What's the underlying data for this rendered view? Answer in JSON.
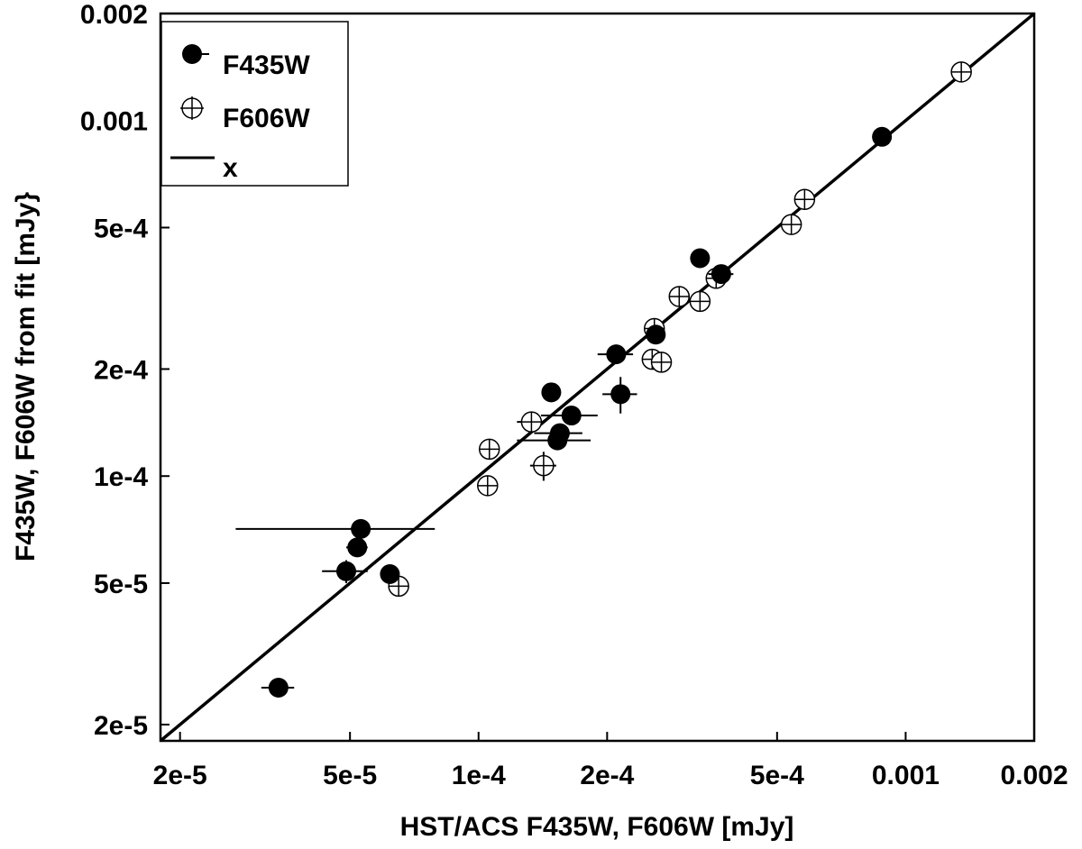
{
  "chart_data": {
    "type": "scatter",
    "xlabel": "HST/ACS F435W, F606W [mJy]",
    "ylabel": "F435W, F606W  from fit [mJy}",
    "x_scale": "log",
    "y_scale": "log",
    "xlim": [
      1.8e-05,
      0.002
    ],
    "ylim": [
      1.8e-05,
      0.002
    ],
    "x_ticks": [
      {
        "value": 2e-05,
        "label": "2e-5"
      },
      {
        "value": 5e-05,
        "label": "5e-5"
      },
      {
        "value": 0.0001,
        "label": "1e-4"
      },
      {
        "value": 0.0002,
        "label": "2e-4"
      },
      {
        "value": 0.0005,
        "label": "5e-4"
      },
      {
        "value": 0.001,
        "label": "0.001"
      },
      {
        "value": 0.002,
        "label": "0.002"
      }
    ],
    "y_ticks": [
      {
        "value": 2e-05,
        "label": "2e-5"
      },
      {
        "value": 5e-05,
        "label": "5e-5"
      },
      {
        "value": 0.0001,
        "label": "1e-4"
      },
      {
        "value": 0.0002,
        "label": "2e-4"
      },
      {
        "value": 0.0005,
        "label": "5e-4"
      },
      {
        "value": 0.001,
        "label": "0.001"
      },
      {
        "value": 0.002,
        "label": "0.002"
      }
    ],
    "grid": false,
    "legend_position": "top-left",
    "legend": [
      {
        "label": "F435W",
        "marker": "filled-circle"
      },
      {
        "label": "F606W",
        "marker": "open-circle-cross"
      },
      {
        "label": "x",
        "marker": "line"
      }
    ],
    "reference_line": {
      "name": "x",
      "x": [
        1.8e-05,
        0.002
      ],
      "y": [
        1.8e-05,
        0.002
      ]
    },
    "series": [
      {
        "name": "F435W",
        "marker": "filled-circle",
        "points": [
          {
            "x": 0.00088,
            "y": 0.0009,
            "xerr": 1e-05,
            "yerr": 5e-06
          },
          {
            "x": 0.00033,
            "y": 0.00041,
            "xerr": 1e-05,
            "yerr": 8e-06
          },
          {
            "x": 0.00037,
            "y": 0.00037,
            "xerr": 2.5e-05,
            "yerr": 1e-05
          },
          {
            "x": 0.00026,
            "y": 0.00025,
            "xerr": 1e-05,
            "yerr": 1e-05
          },
          {
            "x": 0.00021,
            "y": 0.00022,
            "xerr": 2e-05,
            "yerr": 8e-06
          },
          {
            "x": 0.000215,
            "y": 0.00017,
            "xerr": 2e-05,
            "yerr": 2e-05
          },
          {
            "x": 0.000148,
            "y": 0.000172,
            "xerr": 5e-06,
            "yerr": 5e-06
          },
          {
            "x": 0.000165,
            "y": 0.000148,
            "xerr": 2.5e-05,
            "yerr": 5e-06
          },
          {
            "x": 0.000155,
            "y": 0.000132,
            "xerr": 2e-05,
            "yerr": 5e-06
          },
          {
            "x": 0.000153,
            "y": 0.000126,
            "xerr": 3e-05,
            "yerr": 5e-06
          },
          {
            "x": 5.3e-05,
            "y": 7.1e-05,
            "xerr": 2.6e-05,
            "yerr": 3e-06
          },
          {
            "x": 5.2e-05,
            "y": 6.3e-05,
            "xerr": 3e-06,
            "yerr": 3e-06
          },
          {
            "x": 4.9e-05,
            "y": 5.4e-05,
            "xerr": 6e-06,
            "yerr": 4e-06
          },
          {
            "x": 6.2e-05,
            "y": 5.3e-05,
            "xerr": 3e-06,
            "yerr": 2e-06
          },
          {
            "x": 3.4e-05,
            "y": 2.54e-05,
            "xerr": 3e-06,
            "yerr": 5e-07
          }
        ]
      },
      {
        "name": "F606W",
        "marker": "open-circle-cross",
        "points": [
          {
            "x": 0.00135,
            "y": 0.00137,
            "xerr": 1e-05,
            "yerr": 1e-05
          },
          {
            "x": 0.00058,
            "y": 0.0006,
            "xerr": 1e-05,
            "yerr": 1e-05
          },
          {
            "x": 0.00054,
            "y": 0.00051,
            "xerr": 1e-05,
            "yerr": 1e-05
          },
          {
            "x": 0.00036,
            "y": 0.00036,
            "xerr": 1e-05,
            "yerr": 1e-05
          },
          {
            "x": 0.00033,
            "y": 0.00031,
            "xerr": 1e-05,
            "yerr": 1e-05
          },
          {
            "x": 0.000295,
            "y": 0.00032,
            "xerr": 1e-05,
            "yerr": 1e-05
          },
          {
            "x": 0.000258,
            "y": 0.00026,
            "xerr": 1e-05,
            "yerr": 1e-05
          },
          {
            "x": 0.000255,
            "y": 0.000213,
            "xerr": 1e-05,
            "yerr": 1e-05
          },
          {
            "x": 0.000268,
            "y": 0.000209,
            "xerr": 1e-05,
            "yerr": 1e-05
          },
          {
            "x": 0.000133,
            "y": 0.000142,
            "xerr": 1e-05,
            "yerr": 1e-05
          },
          {
            "x": 0.000142,
            "y": 0.000107,
            "xerr": 1e-05,
            "yerr": 1e-05
          },
          {
            "x": 0.000106,
            "y": 0.000119,
            "xerr": 1e-06,
            "yerr": 1e-06
          },
          {
            "x": 0.000105,
            "y": 9.4e-05,
            "xerr": 1e-06,
            "yerr": 1e-06
          },
          {
            "x": 6.5e-05,
            "y": 4.9e-05,
            "xerr": 1e-06,
            "yerr": 1e-06
          }
        ]
      }
    ]
  }
}
